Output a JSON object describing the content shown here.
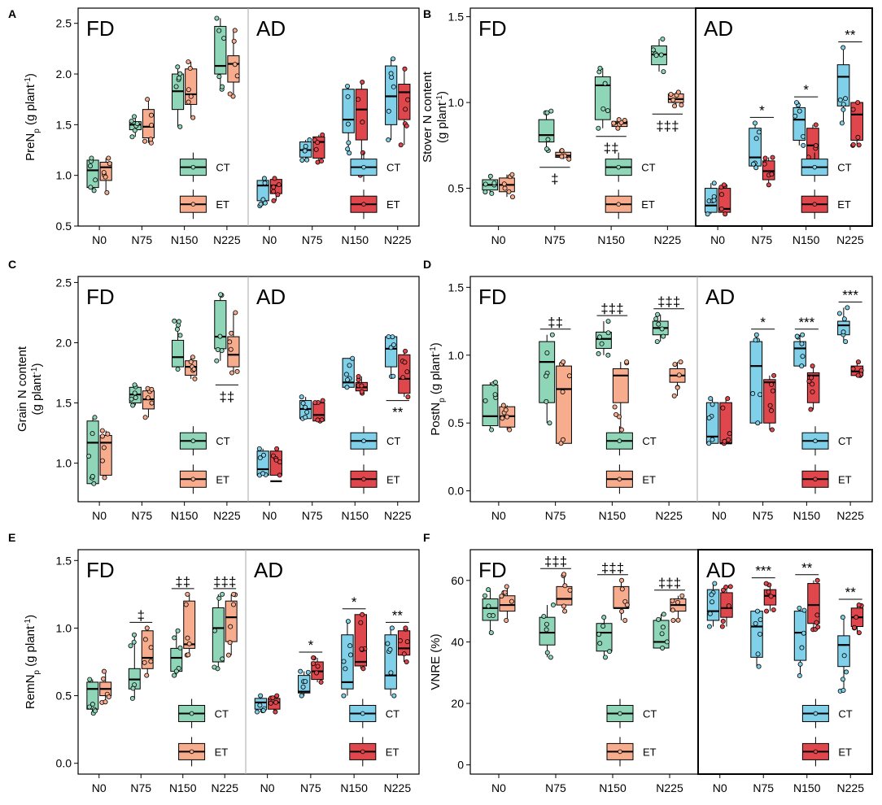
{
  "figure": {
    "colors": {
      "FD_CT": "#8fd6b9",
      "FD_ET": "#f7ad8d",
      "AD_CT": "#7fd0e8",
      "AD_ET": "#e0474c",
      "line": "#000000"
    },
    "categories": [
      "N0",
      "N75",
      "N150",
      "N225"
    ],
    "legend": {
      "ct": "CT",
      "et": "ET"
    },
    "panels_text": {
      "fd": "FD",
      "ad": "AD"
    }
  },
  "chart_data": [
    {
      "type": "box",
      "panel_label": "A",
      "ylabel": "PreNp (g plant-1)",
      "ylabel_main": "PreN",
      "ylabel_sub": "p",
      "ylabel_rest": " (g plant",
      "ylabel_sup": "-1",
      "ylabel_end": ")",
      "ylim": [
        0.5,
        2.65
      ],
      "yticks": [
        "0.5",
        "1.0",
        "1.5",
        "2.0",
        "2.5"
      ],
      "FD": {
        "CT": [
          [
            0.85,
            0.88,
            1.05,
            1.15,
            1.17
          ],
          [
            1.38,
            1.45,
            1.5,
            1.53,
            1.58
          ],
          [
            1.48,
            1.65,
            1.83,
            2.0,
            2.07
          ],
          [
            1.85,
            2.0,
            2.08,
            2.47,
            2.55
          ]
        ],
        "ET": [
          [
            0.83,
            0.95,
            1.08,
            1.13,
            1.17
          ],
          [
            1.32,
            1.37,
            1.48,
            1.65,
            1.75
          ],
          [
            1.57,
            1.7,
            1.8,
            2.05,
            2.12
          ],
          [
            1.78,
            1.92,
            2.1,
            2.18,
            2.43
          ]
        ]
      },
      "AD": {
        "CT": [
          [
            0.7,
            0.75,
            0.9,
            0.95,
            0.97
          ],
          [
            1.15,
            1.18,
            1.25,
            1.33,
            1.35
          ],
          [
            1.22,
            1.42,
            1.55,
            1.85,
            1.88
          ],
          [
            1.35,
            1.5,
            1.78,
            2.08,
            2.15
          ]
        ],
        "ET": [
          [
            0.75,
            0.82,
            0.9,
            0.96,
            0.97
          ],
          [
            1.13,
            1.17,
            1.33,
            1.38,
            1.4
          ],
          [
            1.0,
            1.35,
            1.65,
            1.85,
            1.92
          ],
          [
            1.3,
            1.55,
            1.82,
            1.9,
            2.05
          ]
        ]
      },
      "sig_FD": [
        "",
        "",
        "",
        ""
      ],
      "sig_AD": [
        "",
        "",
        "",
        ""
      ]
    },
    {
      "type": "box",
      "panel_label": "B",
      "ylabel": "Stover N content (g plant-1)",
      "ylabel_line1": "Stover N content",
      "ylabel_main": "(g plant",
      "ylabel_sup": "-1",
      "ylabel_end": ")",
      "ylim": [
        0.28,
        1.55
      ],
      "yticks": [
        "0.5",
        "1.0",
        "1.5"
      ],
      "FD": {
        "CT": [
          [
            0.47,
            0.49,
            0.52,
            0.55,
            0.57
          ],
          [
            0.72,
            0.77,
            0.81,
            0.9,
            0.95
          ],
          [
            0.85,
            0.9,
            1.1,
            1.15,
            1.2
          ],
          [
            1.18,
            1.22,
            1.28,
            1.33,
            1.37
          ]
        ],
        "ET": [
          [
            0.45,
            0.48,
            0.52,
            0.56,
            0.58
          ],
          [
            0.67,
            0.68,
            0.69,
            0.71,
            0.72
          ],
          [
            0.85,
            0.86,
            0.88,
            0.89,
            0.9
          ],
          [
            0.98,
            1.0,
            1.02,
            1.05,
            1.06
          ]
        ]
      },
      "AD": {
        "CT": [
          [
            0.35,
            0.36,
            0.4,
            0.5,
            0.53
          ],
          [
            0.62,
            0.63,
            0.68,
            0.85,
            0.88
          ],
          [
            0.75,
            0.78,
            0.9,
            0.97,
            1.0
          ],
          [
            0.88,
            0.98,
            1.15,
            1.22,
            1.32
          ]
        ],
        "ET": [
          [
            0.35,
            0.36,
            0.38,
            0.5,
            0.52
          ],
          [
            0.52,
            0.55,
            0.6,
            0.66,
            0.68
          ],
          [
            0.62,
            0.65,
            0.75,
            0.85,
            0.87
          ],
          [
            0.75,
            0.78,
            0.93,
            1.0,
            1.0
          ]
        ]
      },
      "sig_FD": [
        "",
        "‡",
        "‡‡",
        "‡‡‡"
      ],
      "sig_AD": [
        "",
        "*",
        "*",
        "**"
      ]
    },
    {
      "type": "box",
      "panel_label": "C",
      "ylabel": "Grain N content (g plant-1)",
      "ylabel_line1": "Grain N content",
      "ylabel_main": "(g plant",
      "ylabel_sup": "-1",
      "ylabel_end": ")",
      "ylim": [
        0.68,
        2.55
      ],
      "yticks": [
        "1.0",
        "1.5",
        "2.0",
        "2.5"
      ],
      "FD": {
        "CT": [
          [
            0.83,
            0.83,
            1.17,
            1.35,
            1.38
          ],
          [
            1.48,
            1.5,
            1.57,
            1.63,
            1.65
          ],
          [
            1.78,
            1.8,
            1.88,
            2.02,
            2.18
          ],
          [
            1.85,
            1.95,
            2.05,
            2.35,
            2.4
          ]
        ],
        "ET": [
          [
            0.88,
            0.9,
            1.17,
            1.23,
            1.27
          ],
          [
            1.38,
            1.45,
            1.53,
            1.6,
            1.62
          ],
          [
            1.7,
            1.73,
            1.8,
            1.85,
            1.88
          ],
          [
            1.75,
            1.8,
            1.9,
            2.05,
            2.25
          ]
        ]
      },
      "AD": {
        "CT": [
          [
            0.9,
            0.9,
            0.95,
            1.1,
            1.12
          ],
          [
            1.37,
            1.37,
            1.45,
            1.52,
            1.55
          ],
          [
            1.63,
            1.63,
            1.67,
            1.87,
            1.87
          ],
          [
            1.72,
            1.8,
            1.95,
            2.05,
            2.05
          ]
        ],
        "ET": [
          [
            0.9,
            0.9,
            0.85,
            1.1,
            1.12
          ],
          [
            1.35,
            1.35,
            1.4,
            1.5,
            1.52
          ],
          [
            1.58,
            1.6,
            1.63,
            1.67,
            1.72
          ],
          [
            1.55,
            1.58,
            1.7,
            1.9,
            1.93
          ]
        ]
      },
      "sig_FD": [
        "",
        "",
        "",
        "‡‡"
      ],
      "sig_AD": [
        "",
        "",
        "",
        "**"
      ]
    },
    {
      "type": "box",
      "panel_label": "D",
      "ylabel": "PostNp (g plant-1)",
      "ylabel_main": "PostN",
      "ylabel_sub": "p",
      "ylabel_rest": " (g plant",
      "ylabel_sup": "-1",
      "ylabel_end": ")",
      "ylim": [
        -0.08,
        1.58
      ],
      "yticks": [
        "0.0",
        "0.5",
        "1.0",
        "1.5"
      ],
      "FD": {
        "CT": [
          [
            0.45,
            0.48,
            0.55,
            0.78,
            0.8
          ],
          [
            0.5,
            0.65,
            0.95,
            1.1,
            1.15
          ],
          [
            1.0,
            1.05,
            1.12,
            1.17,
            1.25
          ],
          [
            1.1,
            1.15,
            1.2,
            1.25,
            1.3
          ]
        ],
        "ET": [
          [
            0.45,
            0.47,
            0.55,
            0.62,
            0.63
          ],
          [
            0.35,
            0.35,
            0.75,
            0.92,
            0.95
          ],
          [
            0.45,
            0.65,
            0.85,
            0.9,
            0.95
          ],
          [
            0.7,
            0.8,
            0.85,
            0.9,
            0.95
          ]
        ]
      },
      "AD": {
        "CT": [
          [
            0.35,
            0.35,
            0.4,
            0.65,
            0.68
          ],
          [
            0.5,
            0.5,
            0.92,
            1.1,
            1.15
          ],
          [
            0.92,
            0.92,
            1.05,
            1.1,
            1.15
          ],
          [
            1.1,
            1.15,
            1.22,
            1.25,
            1.35
          ]
        ],
        "ET": [
          [
            0.35,
            0.35,
            0.35,
            0.65,
            0.68
          ],
          [
            0.45,
            0.5,
            0.8,
            0.82,
            0.85
          ],
          [
            0.6,
            0.65,
            0.85,
            0.87,
            0.92
          ],
          [
            0.85,
            0.85,
            0.88,
            0.92,
            0.95
          ]
        ]
      },
      "sig_FD": [
        "",
        "‡‡",
        "‡‡‡",
        "‡‡‡"
      ],
      "sig_AD": [
        "",
        "*",
        "***",
        "***"
      ]
    },
    {
      "type": "box",
      "panel_label": "E",
      "ylabel": "RemNp (g plant-1)",
      "ylabel_main": "RemN",
      "ylabel_sub": "p",
      "ylabel_rest": " (g plant",
      "ylabel_sup": "-1",
      "ylabel_end": ")",
      "ylim": [
        -0.08,
        1.58
      ],
      "yticks": [
        "0.0",
        "0.5",
        "1.0",
        "1.5"
      ],
      "FD": {
        "CT": [
          [
            0.37,
            0.4,
            0.55,
            0.6,
            0.62
          ],
          [
            0.48,
            0.55,
            0.62,
            0.7,
            0.95
          ],
          [
            0.65,
            0.68,
            0.78,
            0.85,
            0.98
          ],
          [
            0.7,
            0.75,
            1.0,
            1.15,
            1.25
          ]
        ],
        "ET": [
          [
            0.45,
            0.5,
            0.55,
            0.6,
            0.68
          ],
          [
            0.65,
            0.7,
            0.78,
            0.98,
            1.0
          ],
          [
            0.8,
            0.85,
            0.88,
            1.2,
            1.25
          ],
          [
            0.8,
            0.9,
            1.08,
            1.2,
            1.25
          ]
        ]
      },
      "AD": {
        "CT": [
          [
            0.38,
            0.4,
            0.45,
            0.48,
            0.5
          ],
          [
            0.5,
            0.52,
            0.53,
            0.65,
            0.68
          ],
          [
            0.5,
            0.55,
            0.6,
            0.95,
            1.05
          ],
          [
            0.5,
            0.55,
            0.65,
            0.95,
            1.0
          ]
        ],
        "ET": [
          [
            0.38,
            0.4,
            0.45,
            0.48,
            0.5
          ],
          [
            0.6,
            0.62,
            0.68,
            0.75,
            0.78
          ],
          [
            0.7,
            0.72,
            0.75,
            1.1,
            1.1
          ],
          [
            0.75,
            0.8,
            0.85,
            0.98,
            1.0
          ]
        ]
      },
      "sig_FD": [
        "",
        "‡",
        "‡‡",
        "‡‡‡"
      ],
      "sig_AD": [
        "",
        "*",
        "*",
        "**"
      ]
    },
    {
      "type": "box",
      "panel_label": "F",
      "ylabel": "VNRE (%)",
      "ylabel_main": "VNRE (%)",
      "ylim": [
        -3,
        70
      ],
      "yticks": [
        "0",
        "20",
        "40",
        "60"
      ],
      "FD": {
        "CT": [
          [
            43,
            47,
            51,
            54,
            57
          ],
          [
            35,
            39,
            43,
            48,
            52
          ],
          [
            35,
            37,
            43,
            46,
            48
          ],
          [
            38,
            38,
            40,
            47,
            49
          ]
        ],
        "ET": [
          [
            47,
            50,
            52,
            55,
            58
          ],
          [
            50,
            52,
            54,
            58,
            62
          ],
          [
            47,
            51,
            51,
            58,
            60
          ],
          [
            47,
            50,
            52,
            54,
            55
          ]
        ]
      },
      "AD": {
        "CT": [
          [
            45,
            47,
            50,
            57,
            59
          ],
          [
            32,
            35,
            45,
            50,
            50
          ],
          [
            29,
            34,
            43,
            50,
            51
          ],
          [
            24,
            32,
            39,
            42,
            48
          ]
        ],
        "ET": [
          [
            45,
            48,
            51,
            56,
            58
          ],
          [
            50,
            52,
            55,
            57,
            59
          ],
          [
            44,
            46,
            52,
            59,
            60
          ],
          [
            43,
            45,
            48,
            51,
            52
          ]
        ]
      },
      "sig_FD": [
        "",
        "‡‡‡",
        "‡‡‡",
        "‡‡‡"
      ],
      "sig_AD": [
        "",
        "***",
        "**",
        "**"
      ]
    }
  ]
}
